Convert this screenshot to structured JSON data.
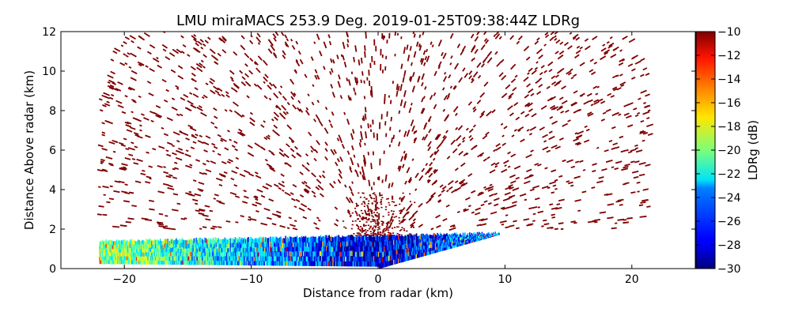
{
  "chart_data": {
    "type": "heatmap",
    "title": "LMU miraMACS 253.9 Deg. 2019-01-25T09:38:44Z  LDRg",
    "xlabel": "Distance from radar (km)",
    "ylabel": "Distance Above radar  (km)",
    "xlim": [
      -25,
      25
    ],
    "ylim": [
      0,
      12
    ],
    "xticks": [
      -20,
      -10,
      0,
      10,
      20
    ],
    "xtick_labels": [
      "−20",
      "−10",
      "0",
      "10",
      "20"
    ],
    "yticks": [
      0,
      2,
      4,
      6,
      8,
      10,
      12
    ],
    "ytick_labels": [
      "0",
      "2",
      "4",
      "6",
      "8",
      "10",
      "12"
    ],
    "grid": false,
    "scan_azimuth_deg": 253.9,
    "colorbar": {
      "label": "LDRg (dB)",
      "range": [
        -30,
        -10
      ],
      "colormap": "jet",
      "ticks": [
        -10,
        -12,
        -14,
        -16,
        -18,
        -20,
        -22,
        -24,
        -26,
        -28,
        -30
      ],
      "tick_labels": [
        "−10",
        "−12",
        "−14",
        "−16",
        "−18",
        "−20",
        "−22",
        "−24",
        "−26",
        "−28",
        "−30"
      ]
    },
    "regions": [
      {
        "name": "low-level cloud layer",
        "x_range_km": [
          -22,
          9.5
        ],
        "height_top_km": [
          1.4,
          1.8
        ],
        "ldr_db_range": [
          -30,
          -18
        ]
      },
      {
        "name": "noise speckle above radar",
        "x_range_km": [
          -22,
          21.5
        ],
        "height_km": [
          2,
          12
        ],
        "ldr_db": -10
      }
    ]
  }
}
